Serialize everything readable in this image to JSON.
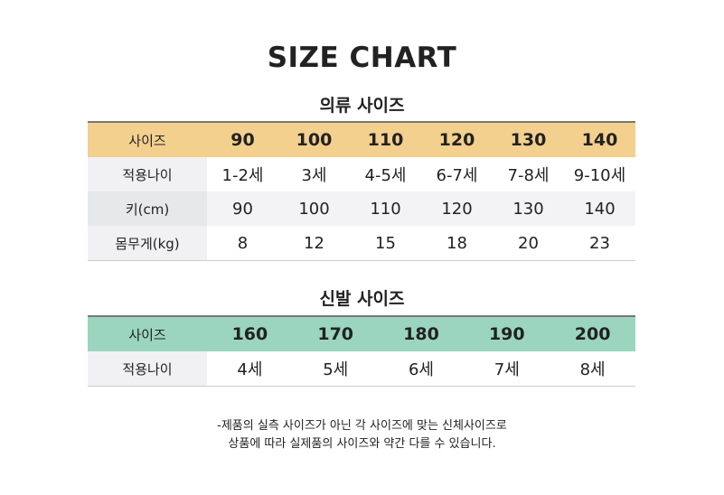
{
  "title": "SIZE CHART",
  "clothing": {
    "heading": "의류 사이즈",
    "header": {
      "label": "사이즈",
      "values": [
        "90",
        "100",
        "110",
        "120",
        "130",
        "140"
      ]
    },
    "rows": [
      {
        "label": "적용나이",
        "values": [
          "1-2세",
          "3세",
          "4-5세",
          "6-7세",
          "7-8세",
          "9-10세"
        ]
      },
      {
        "label": "키(cm)",
        "values": [
          "90",
          "100",
          "110",
          "120",
          "130",
          "140"
        ]
      },
      {
        "label": "몸무게(kg)",
        "values": [
          "8",
          "12",
          "15",
          "18",
          "20",
          "23"
        ]
      }
    ]
  },
  "shoes": {
    "heading": "신발 사이즈",
    "header": {
      "label": "사이즈",
      "values": [
        "160",
        "170",
        "180",
        "190",
        "200"
      ]
    },
    "rows": [
      {
        "label": "적용나이",
        "values": [
          "4세",
          "5세",
          "6세",
          "7세",
          "8세"
        ]
      }
    ]
  },
  "note": [
    "-제품의 실측 사이즈가 아닌 각 사이즈에 맞는 신체사이즈로",
    "상품에 따라 실제품의 사이즈와 약간 다를 수 있습니다."
  ],
  "colors": {
    "clothing_header": "#f3d08e",
    "shoes_header": "#9bd5c0"
  }
}
